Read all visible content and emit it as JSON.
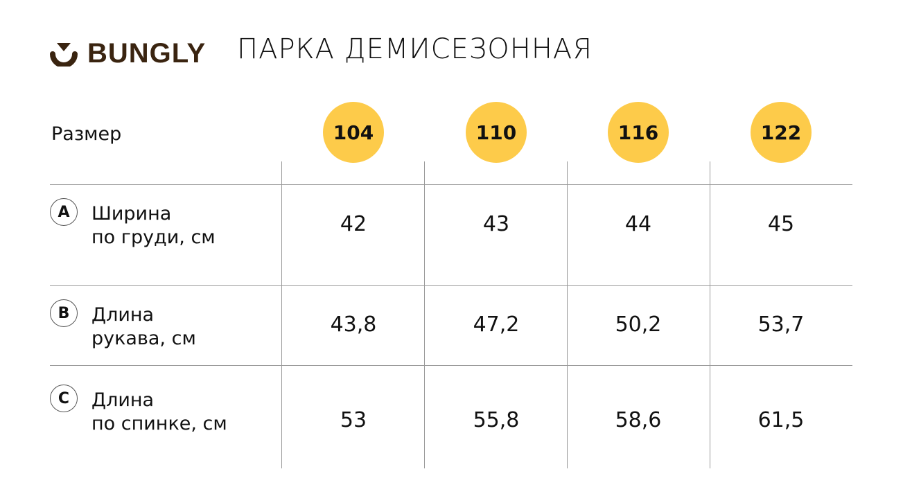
{
  "header": {
    "brand": "BUNGLY",
    "title": "ПАРКА ДЕМИСЕЗОННАЯ",
    "brand_color": "#3a2410",
    "logo_icon": "smile-cup-icon"
  },
  "table": {
    "size_label": "Размер",
    "accent_color": "#fdcb4a",
    "sizes": [
      "104",
      "110",
      "116",
      "122"
    ],
    "rows": [
      {
        "badge": "A",
        "line1": "Ширина",
        "line2": "по груди, см",
        "values": [
          "42",
          "43",
          "44",
          "45"
        ]
      },
      {
        "badge": "B",
        "line1": "Длина",
        "line2": "рукава, см",
        "values": [
          "43,8",
          "47,2",
          "50,2",
          "53,7"
        ]
      },
      {
        "badge": "C",
        "line1": "Длина",
        "line2": "по спинке, см",
        "values": [
          "53",
          "55,8",
          "58,6",
          "61,5"
        ]
      }
    ]
  }
}
